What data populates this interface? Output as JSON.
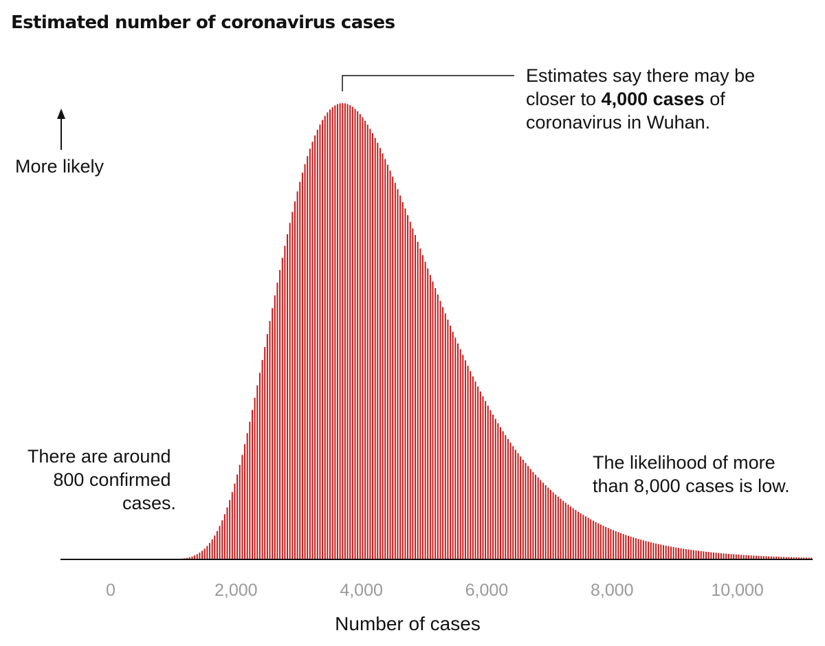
{
  "title": "Estimated number of coronavirus cases",
  "colors": {
    "bar": "#c41a1a",
    "axis": "#121212",
    "tick": "#9a9a9a"
  },
  "annotations": {
    "more_likely": "More likely",
    "peak_lines": [
      "Estimates say there may be",
      "closer to ",
      "4,000 cases",
      " of",
      "coronavirus in Wuhan."
    ],
    "confirmed_lines": [
      "There are around",
      "800 confirmed",
      "cases."
    ],
    "tail_lines": [
      "The likelihood of more",
      "than 8,000 cases is low."
    ]
  },
  "chart_data": {
    "type": "bar",
    "title": "Estimated number of coronavirus cases",
    "xlabel": "Number of cases",
    "ylabel": "More likely",
    "xlim": [
      -800,
      11200
    ],
    "ylim": [
      0,
      1
    ],
    "x_ticks": [
      0,
      2000,
      4000,
      6000,
      8000,
      10000
    ],
    "x_tick_labels": [
      "0",
      "2,000",
      "4,000",
      "6,000",
      "8,000",
      "10,000"
    ],
    "distribution": {
      "kind": "relative-likelihood",
      "peak": 3700,
      "start": 500,
      "end": 11200,
      "bin_width": 40
    },
    "grid": false,
    "legend": "none"
  }
}
